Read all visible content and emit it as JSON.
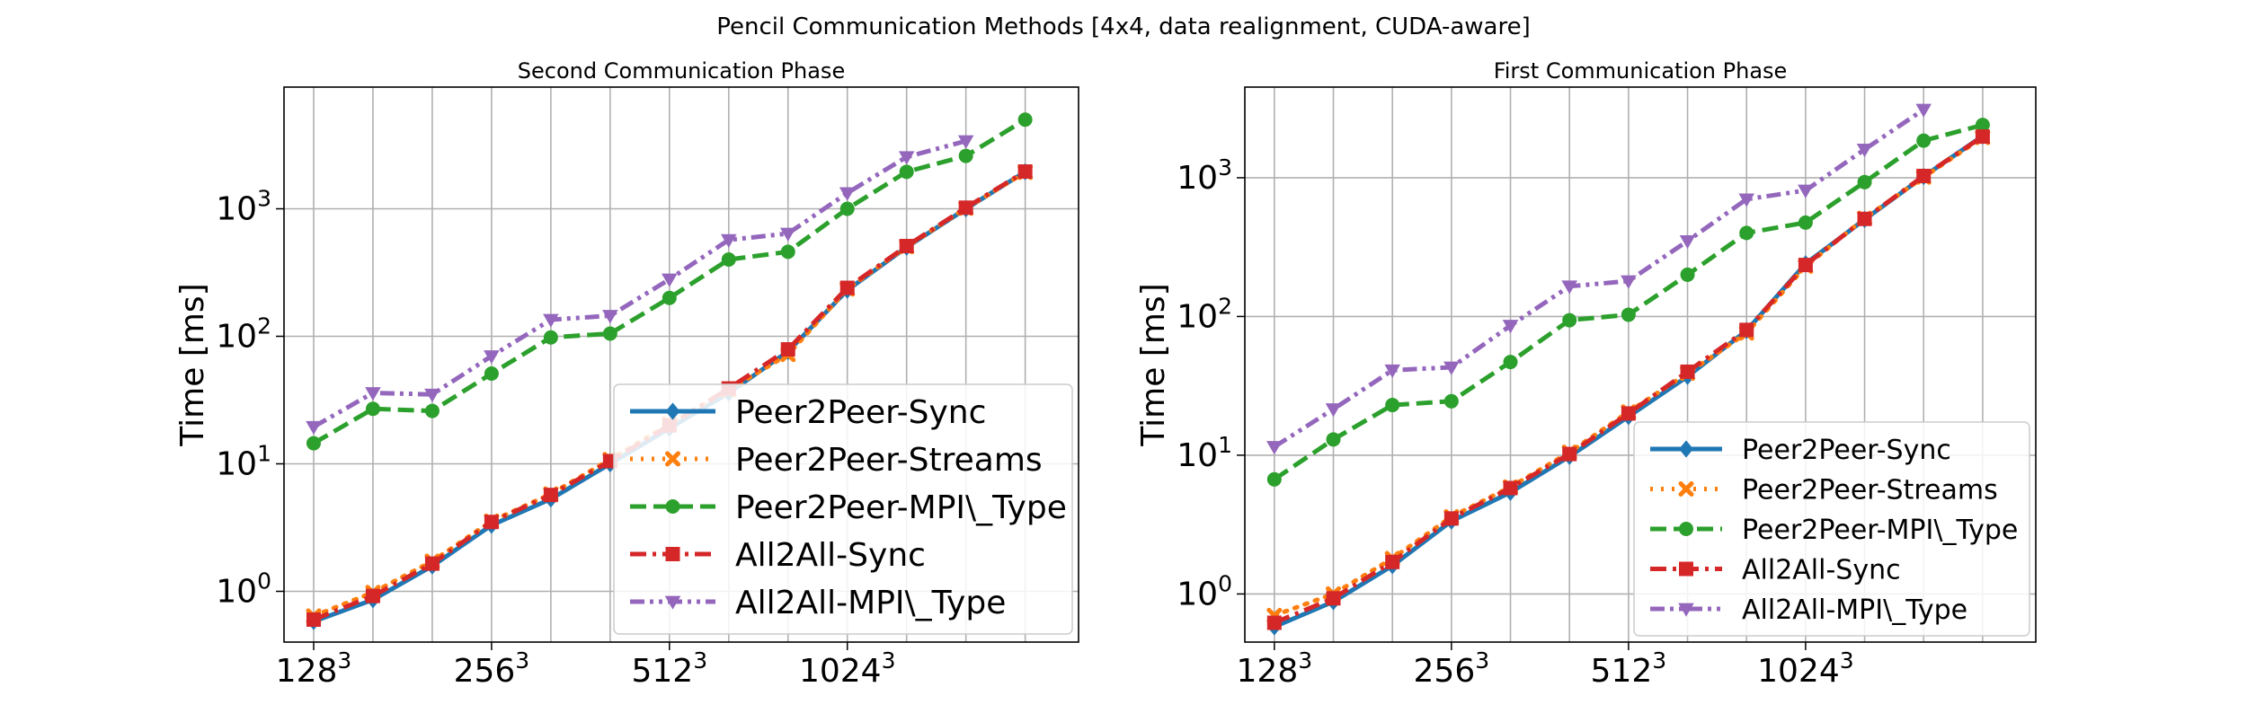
{
  "figure": {
    "suptitle": "Pencil Communication Methods [4x4, data realignment, CUDA-aware]"
  },
  "chart_data": [
    {
      "type": "line",
      "title": "Second Communication Phase",
      "xlabel": "",
      "ylabel": "Time [ms]",
      "yscale": "log",
      "ylim": [
        0.4,
        9000
      ],
      "grid": true,
      "legend_position": "lower-right",
      "x_tick_labels": [
        "128",
        "256",
        "512",
        "1024"
      ],
      "x_tick_superscript": "3",
      "y_tick_labels": [
        {
          "base": "10",
          "exp": "0",
          "value": 1
        },
        {
          "base": "10",
          "exp": "1",
          "value": 10
        },
        {
          "base": "10",
          "exp": "2",
          "value": 100
        },
        {
          "base": "10",
          "exp": "3",
          "value": 1000
        }
      ],
      "num_points": 13,
      "series": [
        {
          "name": "Peer2Peer-Sync",
          "color": "#1f77b4",
          "marker": "diamond",
          "dash": "solid",
          "values": [
            0.58,
            0.86,
            1.58,
            3.3,
            5.3,
            10,
            19,
            36,
            76,
            230,
            500,
            1000,
            1950
          ]
        },
        {
          "name": "Peer2Peer-Streams",
          "color": "#ff7f0e",
          "marker": "x",
          "dash": "dotted",
          "values": [
            0.64,
            0.98,
            1.72,
            3.55,
            5.8,
            10.8,
            20.5,
            38,
            72,
            235,
            505,
            1010,
            1930
          ]
        },
        {
          "name": "Peer2Peer-MPI\\_Type",
          "color": "#2ca02c",
          "marker": "circle",
          "dash": "dashed",
          "values": [
            14.5,
            27,
            26,
            51,
            98,
            105,
            200,
            400,
            460,
            1000,
            1950,
            2600,
            5000
          ]
        },
        {
          "name": "All2All-Sync",
          "color": "#d62728",
          "marker": "square",
          "dash": "dashdot",
          "values": [
            0.6,
            0.92,
            1.65,
            3.5,
            5.7,
            10.5,
            20,
            39,
            79,
            240,
            510,
            1020,
            1960
          ]
        },
        {
          "name": "All2All-MPI\\_Type",
          "color": "#9467bd",
          "marker": "triangle-down",
          "dash": "dashdotdot",
          "values": [
            19.5,
            36,
            35,
            70,
            135,
            145,
            280,
            570,
            640,
            1330,
            2550,
            3400,
            null
          ]
        }
      ]
    },
    {
      "type": "line",
      "title": "First Communication Phase",
      "xlabel": "",
      "ylabel": "Time [ms]",
      "yscale": "log",
      "ylim": [
        0.45,
        4500
      ],
      "grid": true,
      "legend_position": "lower-right",
      "x_tick_labels": [
        "128",
        "256",
        "512",
        "1024"
      ],
      "x_tick_superscript": "3",
      "y_tick_labels": [
        {
          "base": "10",
          "exp": "0",
          "value": 1
        },
        {
          "base": "10",
          "exp": "1",
          "value": 10
        },
        {
          "base": "10",
          "exp": "2",
          "value": 100
        },
        {
          "base": "10",
          "exp": "3",
          "value": 1000
        }
      ],
      "num_points": 13,
      "series": [
        {
          "name": "Peer2Peer-Sync",
          "color": "#1f77b4",
          "marker": "diamond",
          "dash": "solid",
          "values": [
            0.58,
            0.88,
            1.6,
            3.35,
            5.4,
            9.8,
            19,
            37,
            79,
            240,
            500,
            1020,
            2000
          ]
        },
        {
          "name": "Peer2Peer-Streams",
          "color": "#ff7f0e",
          "marker": "x",
          "dash": "dotted",
          "values": [
            0.7,
            1.0,
            1.8,
            3.6,
            5.9,
            10.5,
            20.5,
            39,
            76,
            230,
            510,
            1010,
            1950
          ]
        },
        {
          "name": "Peer2Peer-MPI\\_Type",
          "color": "#2ca02c",
          "marker": "circle",
          "dash": "dashed",
          "values": [
            6.7,
            13,
            23,
            24.5,
            47,
            94,
            103,
            200,
            400,
            475,
            930,
            1850,
            2400
          ]
        },
        {
          "name": "All2All-Sync",
          "color": "#d62728",
          "marker": "square",
          "dash": "dashdot",
          "values": [
            0.62,
            0.93,
            1.7,
            3.5,
            5.8,
            10.2,
            20,
            40,
            80,
            235,
            505,
            1030,
            1980
          ]
        },
        {
          "name": "All2All-MPI\\_Type",
          "color": "#9467bd",
          "marker": "triangle-down",
          "dash": "dashdotdot",
          "values": [
            11.5,
            21.5,
            41,
            43,
            86,
            165,
            180,
            350,
            700,
            810,
            1600,
            3100,
            null
          ]
        }
      ]
    }
  ]
}
